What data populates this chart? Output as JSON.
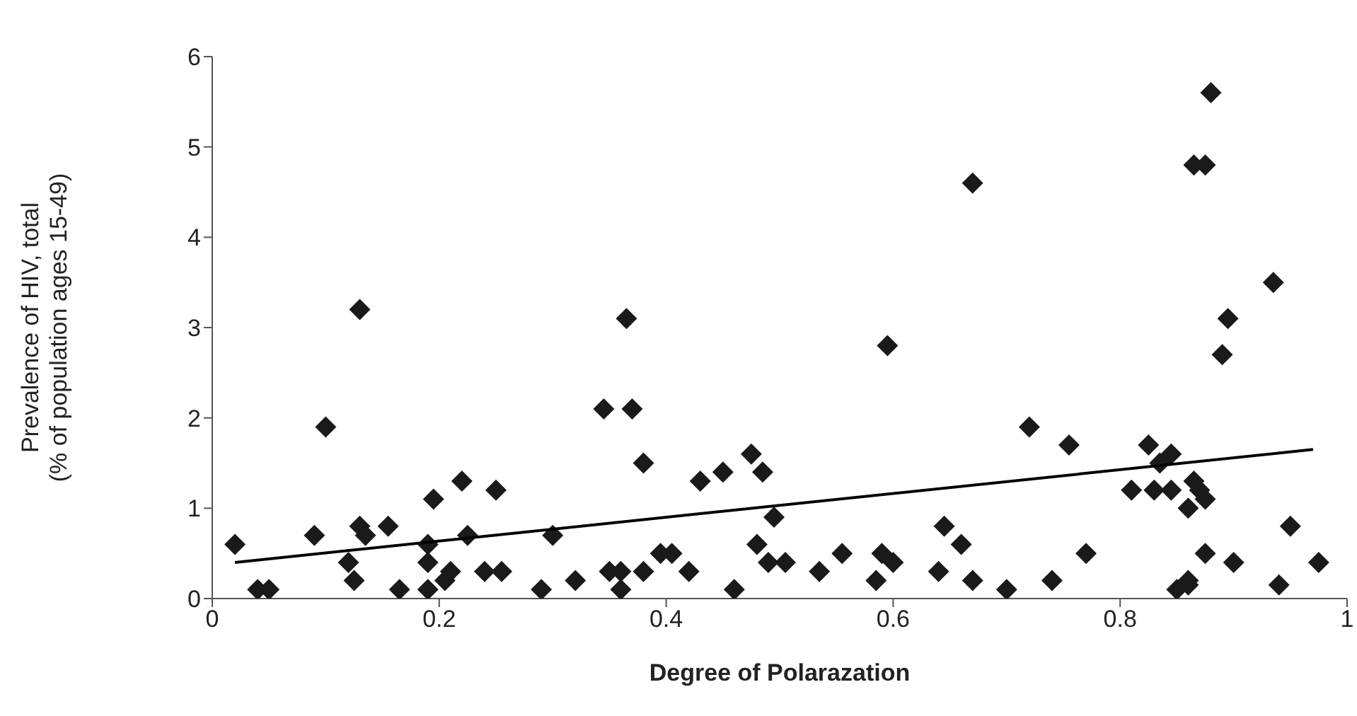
{
  "chart_data": {
    "type": "scatter",
    "xlabel": "Degree of Polarazation",
    "ylabel": "Prevalence of HIV, total\n(% of population ages 15-49)",
    "xlim": [
      0,
      1
    ],
    "xticks": [
      0,
      0.2,
      0.4,
      0.6,
      0.8,
      1
    ],
    "ylim": [
      0,
      6
    ],
    "yticks": [
      0,
      1,
      2,
      3,
      4,
      5,
      6
    ],
    "marker": "diamond",
    "series": [
      {
        "color": "#1a1a1a",
        "x": [
          0.02,
          0.04,
          0.05,
          0.09,
          0.1,
          0.12,
          0.125,
          0.13,
          0.13,
          0.135,
          0.155,
          0.165,
          0.19,
          0.19,
          0.19,
          0.195,
          0.205,
          0.21,
          0.22,
          0.225,
          0.24,
          0.25,
          0.255,
          0.29,
          0.3,
          0.32,
          0.345,
          0.35,
          0.36,
          0.36,
          0.365,
          0.37,
          0.38,
          0.38,
          0.395,
          0.405,
          0.42,
          0.43,
          0.45,
          0.46,
          0.475,
          0.48,
          0.485,
          0.49,
          0.495,
          0.505,
          0.535,
          0.555,
          0.585,
          0.59,
          0.595,
          0.6,
          0.64,
          0.645,
          0.66,
          0.67,
          0.67,
          0.7,
          0.72,
          0.74,
          0.755,
          0.77,
          0.81,
          0.825,
          0.83,
          0.835,
          0.845,
          0.845,
          0.85,
          0.86,
          0.86,
          0.86,
          0.865,
          0.865,
          0.87,
          0.875,
          0.875,
          0.875,
          0.88,
          0.89,
          0.895,
          0.9,
          0.935,
          0.94,
          0.95,
          0.975
        ],
        "values": [
          0.6,
          0.1,
          0.1,
          0.7,
          1.9,
          0.4,
          0.2,
          3.2,
          0.8,
          0.7,
          0.8,
          0.1,
          0.1,
          0.6,
          0.4,
          1.1,
          0.2,
          0.3,
          1.3,
          0.7,
          0.3,
          1.2,
          0.3,
          0.1,
          0.7,
          0.2,
          2.1,
          0.3,
          0.3,
          0.1,
          3.1,
          2.1,
          1.5,
          0.3,
          0.5,
          0.5,
          0.3,
          1.3,
          1.4,
          0.1,
          1.6,
          0.6,
          1.4,
          0.4,
          0.9,
          0.4,
          0.3,
          0.5,
          0.2,
          0.5,
          2.8,
          0.4,
          0.3,
          0.8,
          0.6,
          4.6,
          0.2,
          0.1,
          1.9,
          0.2,
          1.7,
          0.5,
          1.2,
          1.7,
          1.2,
          1.5,
          1.6,
          1.2,
          0.1,
          0.2,
          1.0,
          0.15,
          1.3,
          4.8,
          1.2,
          0.5,
          1.1,
          4.8,
          5.6,
          2.7,
          3.1,
          0.4,
          3.5,
          0.15,
          0.8,
          0.4
        ]
      },
      {
        "type": "line",
        "color": "#000000",
        "marker": "none",
        "x": [
          0.02,
          0.97
        ],
        "values": [
          0.4,
          1.65
        ]
      }
    ]
  }
}
